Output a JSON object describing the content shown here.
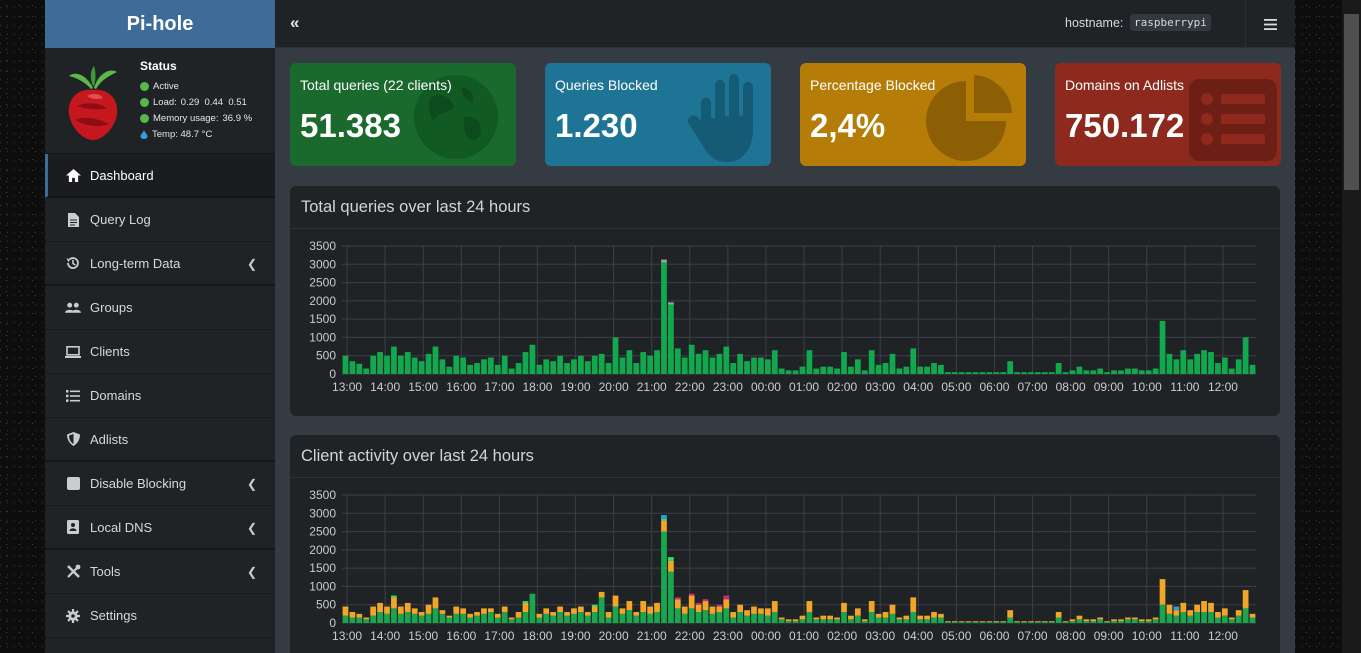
{
  "app": {
    "title": "Pi-hole"
  },
  "status": {
    "title": "Status",
    "active": "Active",
    "load_label": "Load:",
    "load": "0.29  0.44  0.51",
    "memory_label": "Memory usage:",
    "memory": "36.9 %",
    "temp": "Temp: 48.7 °C"
  },
  "sidebar": {
    "items": [
      {
        "label": "Dashboard",
        "icon": "home-icon"
      },
      {
        "label": "Query Log",
        "icon": "file-icon"
      },
      {
        "label": "Long-term Data",
        "icon": "history-icon"
      },
      {
        "label": "Groups",
        "icon": "users-icon"
      },
      {
        "label": "Clients",
        "icon": "laptop-icon"
      },
      {
        "label": "Domains",
        "icon": "list-icon"
      },
      {
        "label": "Adlists",
        "icon": "shield-icon"
      },
      {
        "label": "Disable Blocking",
        "icon": "stop-icon"
      },
      {
        "label": "Local DNS",
        "icon": "address-book-icon"
      },
      {
        "label": "Tools",
        "icon": "tools-icon"
      },
      {
        "label": "Settings",
        "icon": "gear-icon"
      }
    ]
  },
  "topbar": {
    "collapse": "«",
    "hostname_label": "hostname:",
    "hostname": "raspberrypi"
  },
  "stats": [
    {
      "label": "Total queries (22 clients)",
      "value": "51.383",
      "color": "#1a6a2e",
      "icon": "globe-icon"
    },
    {
      "label": "Queries Blocked",
      "value": "1.230",
      "color": "#1e7494",
      "icon": "hand-icon"
    },
    {
      "label": "Percentage Blocked",
      "value": "2,4%",
      "color": "#b57c08",
      "icon": "pie-icon"
    },
    {
      "label": "Domains on Adlists",
      "value": "750.172",
      "color": "#8d2a1d",
      "icon": "list-alt-icon"
    }
  ],
  "charts": {
    "queries_title": "Total queries over last 24 hours",
    "clients_title": "Client activity over last 24 hours"
  },
  "chart_data": [
    {
      "type": "bar",
      "title": "Total queries over last 24 hours",
      "x_ticks": [
        "13:00",
        "14:00",
        "15:00",
        "16:00",
        "17:00",
        "18:00",
        "19:00",
        "20:00",
        "21:00",
        "22:00",
        "23:00",
        "00:00",
        "01:00",
        "02:00",
        "03:00",
        "04:00",
        "05:00",
        "06:00",
        "07:00",
        "08:00",
        "09:00",
        "10:00",
        "11:00",
        "12:00"
      ],
      "ylim": [
        0,
        3500
      ],
      "y_ticks": [
        0,
        500,
        1000,
        1500,
        2000,
        2500,
        3000,
        3500
      ],
      "series": [
        {
          "color": "#12a84d",
          "values": [
            500,
            350,
            280,
            150,
            500,
            600,
            500,
            750,
            500,
            600,
            450,
            350,
            550,
            750,
            400,
            200,
            500,
            450,
            250,
            300,
            400,
            450,
            250,
            500,
            150,
            300,
            600,
            800,
            250,
            400,
            350,
            500,
            300,
            400,
            500,
            350,
            500,
            550,
            300,
            1000,
            450,
            650,
            300,
            600,
            500,
            650,
            3050,
            1900,
            700,
            450,
            800,
            550,
            650,
            450,
            550,
            750,
            300,
            550,
            350,
            450,
            450,
            400,
            650,
            150,
            100,
            100,
            200,
            650,
            150,
            200,
            200,
            150,
            600,
            200,
            400,
            100,
            650,
            250,
            300,
            550,
            150,
            200,
            700,
            200,
            200,
            300,
            250,
            50,
            50,
            50,
            50,
            50,
            50,
            50,
            50,
            50,
            350,
            50,
            50,
            50,
            50,
            50,
            50,
            300,
            50,
            100,
            200,
            100,
            100,
            150,
            50,
            100,
            100,
            150,
            150,
            100,
            100,
            150,
            1450,
            550,
            400,
            650,
            400,
            550,
            650,
            600,
            300,
            450,
            150,
            400,
            1000,
            250
          ]
        },
        {
          "color": "#9e9e9e",
          "values": [
            0,
            0,
            0,
            0,
            0,
            0,
            0,
            0,
            0,
            0,
            0,
            0,
            0,
            0,
            0,
            0,
            0,
            0,
            0,
            0,
            0,
            0,
            0,
            0,
            0,
            0,
            0,
            0,
            0,
            0,
            0,
            0,
            0,
            0,
            0,
            0,
            0,
            0,
            0,
            0,
            0,
            0,
            0,
            0,
            0,
            0,
            80,
            60,
            0,
            0,
            0,
            0,
            0,
            0,
            0,
            0,
            0,
            0,
            0,
            0,
            0,
            0,
            0,
            0,
            0,
            0,
            0,
            0,
            0,
            0,
            0,
            0,
            0,
            0,
            0,
            0,
            0,
            0,
            0,
            0,
            0,
            0,
            0,
            0,
            0,
            0,
            0,
            0,
            0,
            0,
            0,
            0,
            0,
            0,
            0,
            0,
            0,
            0,
            0,
            0,
            0,
            0,
            0,
            0,
            0,
            0,
            0,
            0,
            0,
            0,
            0,
            0,
            0,
            0,
            0,
            0,
            0,
            0,
            0,
            0,
            0,
            0,
            0,
            0,
            0,
            0,
            0,
            0,
            0,
            0
          ]
        }
      ]
    },
    {
      "type": "bar",
      "title": "Client activity over last 24 hours",
      "x_ticks": [
        "13:00",
        "14:00",
        "15:00",
        "16:00",
        "17:00",
        "18:00",
        "19:00",
        "20:00",
        "21:00",
        "22:00",
        "23:00",
        "00:00",
        "01:00",
        "02:00",
        "03:00",
        "04:00",
        "05:00",
        "06:00",
        "07:00",
        "08:00",
        "09:00",
        "10:00",
        "11:00",
        "12:00"
      ],
      "ylim": [
        0,
        3500
      ],
      "y_ticks": [
        0,
        500,
        1000,
        1500,
        2000,
        2500,
        3000,
        3500
      ],
      "stacked": true,
      "series": [
        {
          "color": "#1aa64e",
          "values": [
            200,
            150,
            150,
            100,
            200,
            300,
            250,
            400,
            250,
            300,
            250,
            200,
            250,
            400,
            250,
            150,
            250,
            250,
            150,
            200,
            250,
            300,
            150,
            300,
            100,
            150,
            300,
            800,
            150,
            250,
            200,
            300,
            200,
            250,
            300,
            200,
            300,
            700,
            150,
            450,
            250,
            350,
            200,
            300,
            250,
            300,
            2500,
            1400,
            400,
            250,
            400,
            300,
            350,
            250,
            300,
            400,
            150,
            300,
            200,
            250,
            250,
            200,
            300,
            100,
            50,
            50,
            100,
            300,
            100,
            100,
            100,
            100,
            300,
            100,
            200,
            50,
            300,
            150,
            150,
            250,
            100,
            100,
            300,
            100,
            100,
            150,
            150,
            30,
            30,
            30,
            30,
            30,
            30,
            30,
            30,
            30,
            150,
            30,
            30,
            30,
            30,
            30,
            30,
            150,
            30,
            50,
            100,
            50,
            50,
            100,
            30,
            50,
            50,
            100,
            100,
            50,
            50,
            100,
            500,
            250,
            200,
            300,
            200,
            300,
            300,
            300,
            150,
            200,
            100,
            200,
            400,
            150
          ]
        },
        {
          "color": "#f2a526",
          "values": [
            250,
            150,
            100,
            50,
            250,
            250,
            200,
            300,
            200,
            250,
            150,
            100,
            250,
            300,
            100,
            50,
            200,
            150,
            100,
            100,
            150,
            100,
            100,
            150,
            50,
            150,
            250,
            0,
            100,
            150,
            100,
            150,
            100,
            150,
            150,
            100,
            150,
            150,
            150,
            300,
            150,
            250,
            100,
            300,
            200,
            250,
            300,
            300,
            250,
            200,
            350,
            200,
            250,
            200,
            150,
            250,
            150,
            200,
            150,
            200,
            150,
            200,
            300,
            50,
            50,
            50,
            100,
            300,
            50,
            100,
            100,
            50,
            250,
            100,
            200,
            50,
            300,
            100,
            150,
            250,
            50,
            100,
            400,
            100,
            100,
            150,
            100,
            20,
            20,
            20,
            20,
            20,
            20,
            20,
            20,
            20,
            200,
            20,
            20,
            20,
            20,
            20,
            20,
            150,
            20,
            50,
            100,
            50,
            50,
            50,
            20,
            50,
            50,
            50,
            50,
            50,
            50,
            50,
            700,
            250,
            150,
            250,
            150,
            200,
            300,
            250,
            150,
            200,
            50,
            150,
            500,
            100
          ]
        },
        {
          "color": "#2fe36a",
          "values": [
            0,
            0,
            0,
            0,
            0,
            0,
            0,
            50,
            0,
            0,
            0,
            0,
            0,
            0,
            0,
            0,
            0,
            0,
            0,
            0,
            0,
            0,
            0,
            0,
            0,
            0,
            50,
            0,
            0,
            0,
            0,
            0,
            0,
            0,
            0,
            0,
            50,
            0,
            0,
            0,
            0,
            0,
            0,
            0,
            0,
            0,
            50,
            100,
            0,
            0,
            0,
            0,
            0,
            0,
            0,
            0,
            0,
            0,
            0,
            0,
            0,
            0,
            0,
            0,
            0,
            0,
            0,
            0,
            0,
            0,
            0,
            0,
            0,
            0,
            0,
            0,
            0,
            0,
            0,
            0,
            0,
            0,
            0,
            0,
            0,
            0,
            0,
            0,
            0,
            0,
            0,
            0,
            0,
            0,
            0,
            0,
            0,
            0,
            0,
            0,
            0,
            0,
            0,
            0,
            0,
            0,
            0,
            0,
            0,
            0,
            0,
            0,
            0,
            0,
            0,
            0,
            0,
            0,
            0,
            0,
            0,
            0,
            0,
            0,
            0,
            0,
            0,
            0,
            0,
            0
          ]
        },
        {
          "color": "#d3258c",
          "values": [
            0,
            0,
            0,
            0,
            0,
            0,
            0,
            0,
            0,
            0,
            0,
            0,
            0,
            0,
            0,
            0,
            0,
            0,
            0,
            0,
            0,
            0,
            0,
            0,
            0,
            0,
            0,
            0,
            0,
            0,
            0,
            0,
            0,
            0,
            0,
            0,
            0,
            0,
            0,
            0,
            0,
            0,
            0,
            0,
            0,
            0,
            0,
            0,
            50,
            0,
            50,
            50,
            50,
            0,
            50,
            100,
            0,
            0,
            0,
            0,
            0,
            0,
            0,
            0,
            0,
            0,
            0,
            0,
            0,
            0,
            0,
            0,
            0,
            0,
            0,
            0,
            0,
            0,
            0,
            0,
            0,
            0,
            0,
            0,
            0,
            0,
            0,
            0,
            0,
            0,
            0,
            0,
            0,
            0,
            0,
            0,
            0,
            0,
            0,
            0,
            0,
            0,
            0,
            0,
            0,
            0,
            0,
            0,
            0,
            0,
            0,
            0,
            0,
            0,
            0,
            0,
            0,
            0,
            0,
            0,
            0,
            0,
            0,
            0,
            0,
            0,
            0,
            0,
            0,
            0
          ]
        },
        {
          "color": "#2da1e0",
          "values": [
            0,
            0,
            0,
            0,
            0,
            0,
            0,
            0,
            0,
            0,
            0,
            0,
            0,
            0,
            0,
            0,
            0,
            0,
            0,
            0,
            0,
            0,
            0,
            0,
            0,
            0,
            0,
            0,
            0,
            0,
            0,
            0,
            0,
            0,
            0,
            0,
            0,
            0,
            0,
            0,
            0,
            0,
            0,
            0,
            0,
            0,
            100,
            0,
            0,
            0,
            0,
            0,
            0,
            0,
            0,
            0,
            0,
            0,
            0,
            0,
            0,
            0,
            0,
            0,
            0,
            0,
            0,
            0,
            0,
            0,
            0,
            0,
            0,
            0,
            0,
            0,
            0,
            0,
            0,
            0,
            0,
            0,
            0,
            0,
            0,
            0,
            0,
            0,
            0,
            0,
            0,
            0,
            0,
            0,
            0,
            0,
            0,
            0,
            0,
            0,
            0,
            0,
            0,
            0,
            0,
            0,
            0,
            0,
            0,
            0,
            0,
            0,
            0,
            0,
            0,
            0,
            0,
            0,
            0,
            0,
            100,
            0,
            0,
            0,
            0,
            0,
            0,
            0,
            0,
            0,
            0,
            0,
            0
          ]
        }
      ]
    }
  ]
}
